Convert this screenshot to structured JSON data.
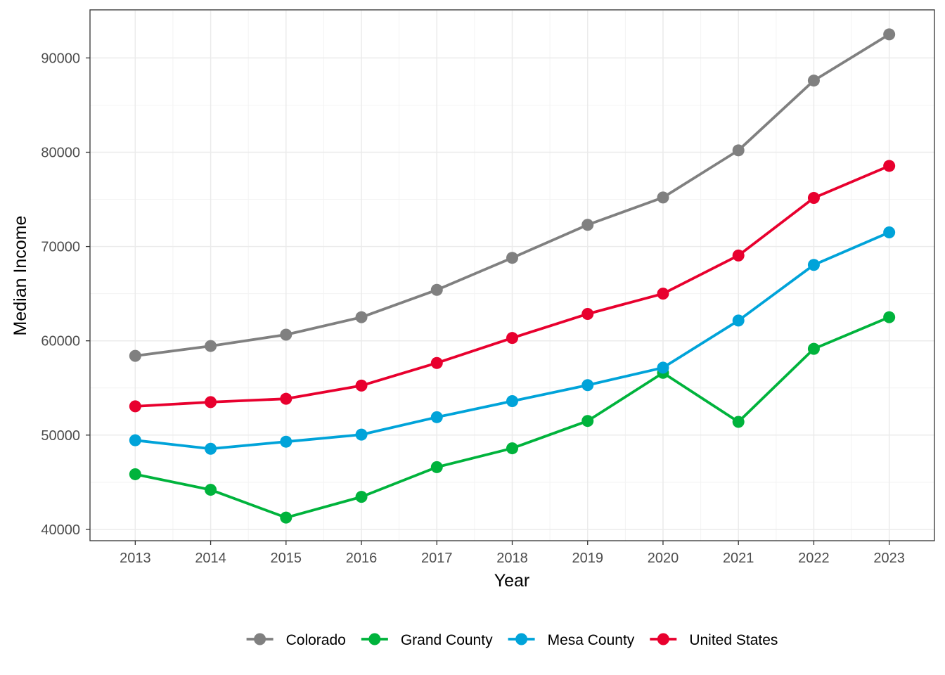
{
  "chart_data": {
    "type": "line",
    "title": "",
    "xlabel": "Year",
    "ylabel": "Median Income",
    "x": [
      2013,
      2014,
      2015,
      2016,
      2017,
      2018,
      2019,
      2020,
      2021,
      2022,
      2023
    ],
    "xticks": [
      "2013",
      "2014",
      "2015",
      "2016",
      "2017",
      "2018",
      "2019",
      "2020",
      "2021",
      "2022",
      "2023"
    ],
    "yticks": [
      40000,
      50000,
      60000,
      70000,
      80000,
      90000
    ],
    "ytick_labels": [
      "40000",
      "50000",
      "60000",
      "70000",
      "80000",
      "90000"
    ],
    "xlim": [
      2012.4,
      2023.6
    ],
    "ylim": [
      38800,
      95100
    ],
    "grid": true,
    "legend_position": "bottom",
    "series": [
      {
        "name": "Colorado",
        "color": "#808080",
        "values": [
          58400,
          59450,
          60650,
          62500,
          65400,
          68800,
          72300,
          75200,
          80200,
          87600,
          92500
        ]
      },
      {
        "name": "Grand County",
        "color": "#00b33c",
        "values": [
          45850,
          44200,
          41250,
          43450,
          46600,
          48600,
          51500,
          56600,
          51400,
          59150,
          62500
        ]
      },
      {
        "name": "Mesa County",
        "color": "#00a3d9",
        "values": [
          49450,
          48550,
          49300,
          50050,
          51900,
          53600,
          55300,
          57150,
          62150,
          68050,
          71500
        ]
      },
      {
        "name": "United States",
        "color": "#e8002e",
        "values": [
          53050,
          53500,
          53850,
          55250,
          57650,
          60300,
          62850,
          65000,
          69050,
          75150,
          78550
        ]
      }
    ]
  }
}
